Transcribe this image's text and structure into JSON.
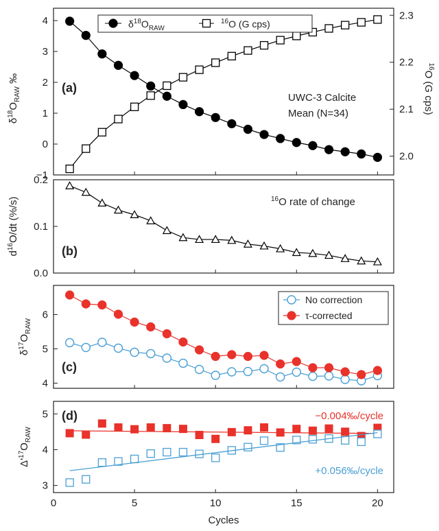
{
  "chart_data": [
    {
      "panel_label": "(a)",
      "type": "line",
      "x": [
        1,
        2,
        3,
        4,
        5,
        6,
        7,
        8,
        9,
        10,
        11,
        12,
        13,
        14,
        15,
        16,
        17,
        18,
        19,
        20
      ],
      "xlim": [
        0,
        21
      ],
      "annotation": [
        "UWC-3 Calcite",
        "Mean (N=34)"
      ],
      "left_axis": {
        "label": "δ18ORAW ‰",
        "label_parts": {
          "prefix": "δ",
          "sup": "18",
          "main": "O",
          "sub": "RAW",
          "suffix": " ‰"
        },
        "ylim": [
          -1,
          4.4
        ],
        "ticks": [
          -1,
          0,
          1,
          2,
          3,
          4
        ],
        "tick_labels": [
          "−1",
          "0",
          "1",
          "2",
          "3",
          "4"
        ]
      },
      "right_axis": {
        "label": "16O (G cps)",
        "label_parts": {
          "sup": "16",
          "main": "O (G cps)"
        },
        "ylim": [
          1.96,
          2.315
        ],
        "ticks": [
          2.0,
          2.1,
          2.2,
          2.3
        ],
        "tick_labels": [
          "2.0",
          "2.1",
          "2.2",
          "2.3"
        ]
      },
      "series": [
        {
          "name": "δ18ORAW",
          "name_parts": {
            "prefix": "δ",
            "sup": "18",
            "main": "O",
            "sub": "RAW"
          },
          "axis": "left",
          "marker": "filled-circle",
          "color": "#000000",
          "values": [
            3.98,
            3.52,
            2.92,
            2.55,
            2.22,
            1.88,
            1.55,
            1.28,
            1.05,
            0.86,
            0.66,
            0.48,
            0.31,
            0.18,
            0.05,
            -0.05,
            -0.18,
            -0.25,
            -0.32,
            -0.43
          ]
        },
        {
          "name": "16O (G cps)",
          "name_parts": {
            "sup": "16",
            "main": "O (G cps)"
          },
          "axis": "right",
          "marker": "open-square",
          "color": "#000000",
          "values": [
            1.973,
            2.016,
            2.051,
            2.079,
            2.105,
            2.129,
            2.15,
            2.168,
            2.184,
            2.199,
            2.213,
            2.225,
            2.236,
            2.247,
            2.256,
            2.264,
            2.272,
            2.279,
            2.285,
            2.291
          ]
        }
      ]
    },
    {
      "panel_label": "(b)",
      "type": "line",
      "x": [
        1,
        2,
        3,
        4,
        5,
        6,
        7,
        8,
        9,
        10,
        11,
        12,
        13,
        14,
        15,
        16,
        17,
        18,
        19,
        20
      ],
      "xlim": [
        0,
        21
      ],
      "annotation": {
        "sup": "16",
        "main": "O rate of change"
      },
      "y_axis": {
        "label": "d16O/dt (%/s)",
        "label_parts": {
          "prefix": "d",
          "sup": "16",
          "main": "O/dt (%/s)"
        },
        "ylim": [
          0,
          0.2
        ],
        "ticks": [
          0.0,
          0.1,
          0.2
        ],
        "tick_labels": [
          "0.0",
          "0.1",
          "0.2"
        ]
      },
      "series": [
        {
          "marker": "open-triangle",
          "color": "#000000",
          "values": [
            0.187,
            0.173,
            0.15,
            0.135,
            0.125,
            0.112,
            0.091,
            0.076,
            0.072,
            0.072,
            0.07,
            0.062,
            0.058,
            0.052,
            0.044,
            0.042,
            0.038,
            0.031,
            0.026,
            0.024
          ]
        }
      ]
    },
    {
      "panel_label": "(c)",
      "type": "line",
      "x": [
        1,
        2,
        3,
        4,
        5,
        6,
        7,
        8,
        9,
        10,
        11,
        12,
        13,
        14,
        15,
        16,
        17,
        18,
        19,
        20
      ],
      "xlim": [
        0,
        21
      ],
      "y_axis": {
        "label": "δ17ORAW",
        "label_parts": {
          "prefix": "δ",
          "sup": "17",
          "main": "O",
          "sub": "RAW"
        },
        "ylim": [
          3.85,
          6.85
        ],
        "ticks": [
          4,
          5,
          6
        ],
        "tick_labels": [
          "4",
          "5",
          "6"
        ]
      },
      "series": [
        {
          "name": "No correction",
          "marker": "open-circle",
          "color": "#4a9fd4",
          "values": [
            5.18,
            5.04,
            5.19,
            5.02,
            4.9,
            4.86,
            4.73,
            4.58,
            4.4,
            4.23,
            4.33,
            4.34,
            4.42,
            4.18,
            4.32,
            4.2,
            4.21,
            4.11,
            4.07,
            4.22
          ]
        },
        {
          "name": "τ-corrected",
          "marker": "filled-circle",
          "color": "#e8322b",
          "values": [
            6.57,
            6.31,
            6.28,
            6.01,
            5.78,
            5.64,
            5.44,
            5.2,
            4.97,
            4.78,
            4.83,
            4.78,
            4.81,
            4.56,
            4.63,
            4.45,
            4.45,
            4.33,
            4.25,
            4.37
          ]
        }
      ]
    },
    {
      "panel_label": "(d)",
      "type": "scatter",
      "x": [
        1,
        2,
        3,
        4,
        5,
        6,
        7,
        8,
        9,
        10,
        11,
        12,
        13,
        14,
        15,
        16,
        17,
        18,
        19,
        20
      ],
      "xlim": [
        0,
        21
      ],
      "xlabel": "Cycles",
      "x_ticks": [
        0,
        5,
        10,
        15,
        20
      ],
      "x_tick_labels": [
        "0",
        "5",
        "10",
        "15",
        "20"
      ],
      "y_axis": {
        "label": "Δ'17ORAW",
        "label_parts": {
          "prefix": "Δ'",
          "sup": "17",
          "main": "O",
          "sub": "RAW"
        },
        "ylim": [
          2.8,
          5.35
        ],
        "ticks": [
          3,
          4,
          5
        ],
        "tick_labels": [
          "3",
          "4",
          "5"
        ]
      },
      "series": [
        {
          "marker": "filled-square",
          "color": "#e8322b",
          "values": [
            4.46,
            4.42,
            4.73,
            4.62,
            4.57,
            4.62,
            4.6,
            4.58,
            4.41,
            4.3,
            4.49,
            4.54,
            4.62,
            4.48,
            4.58,
            4.53,
            4.59,
            4.5,
            4.38,
            4.61
          ],
          "trend": {
            "label": "−0.004‰/cycle",
            "slope": -0.004,
            "intercept": 4.532
          }
        },
        {
          "marker": "open-square",
          "color": "#4a9fd4",
          "values": [
            3.08,
            3.17,
            3.64,
            3.67,
            3.74,
            3.89,
            3.93,
            3.93,
            3.88,
            3.77,
            3.98,
            4.07,
            4.25,
            4.06,
            4.27,
            4.29,
            4.31,
            4.26,
            4.22,
            4.44
          ],
          "trend": {
            "label": "+0.056‰/cycle",
            "slope": 0.056,
            "intercept": 3.355
          }
        }
      ]
    }
  ]
}
